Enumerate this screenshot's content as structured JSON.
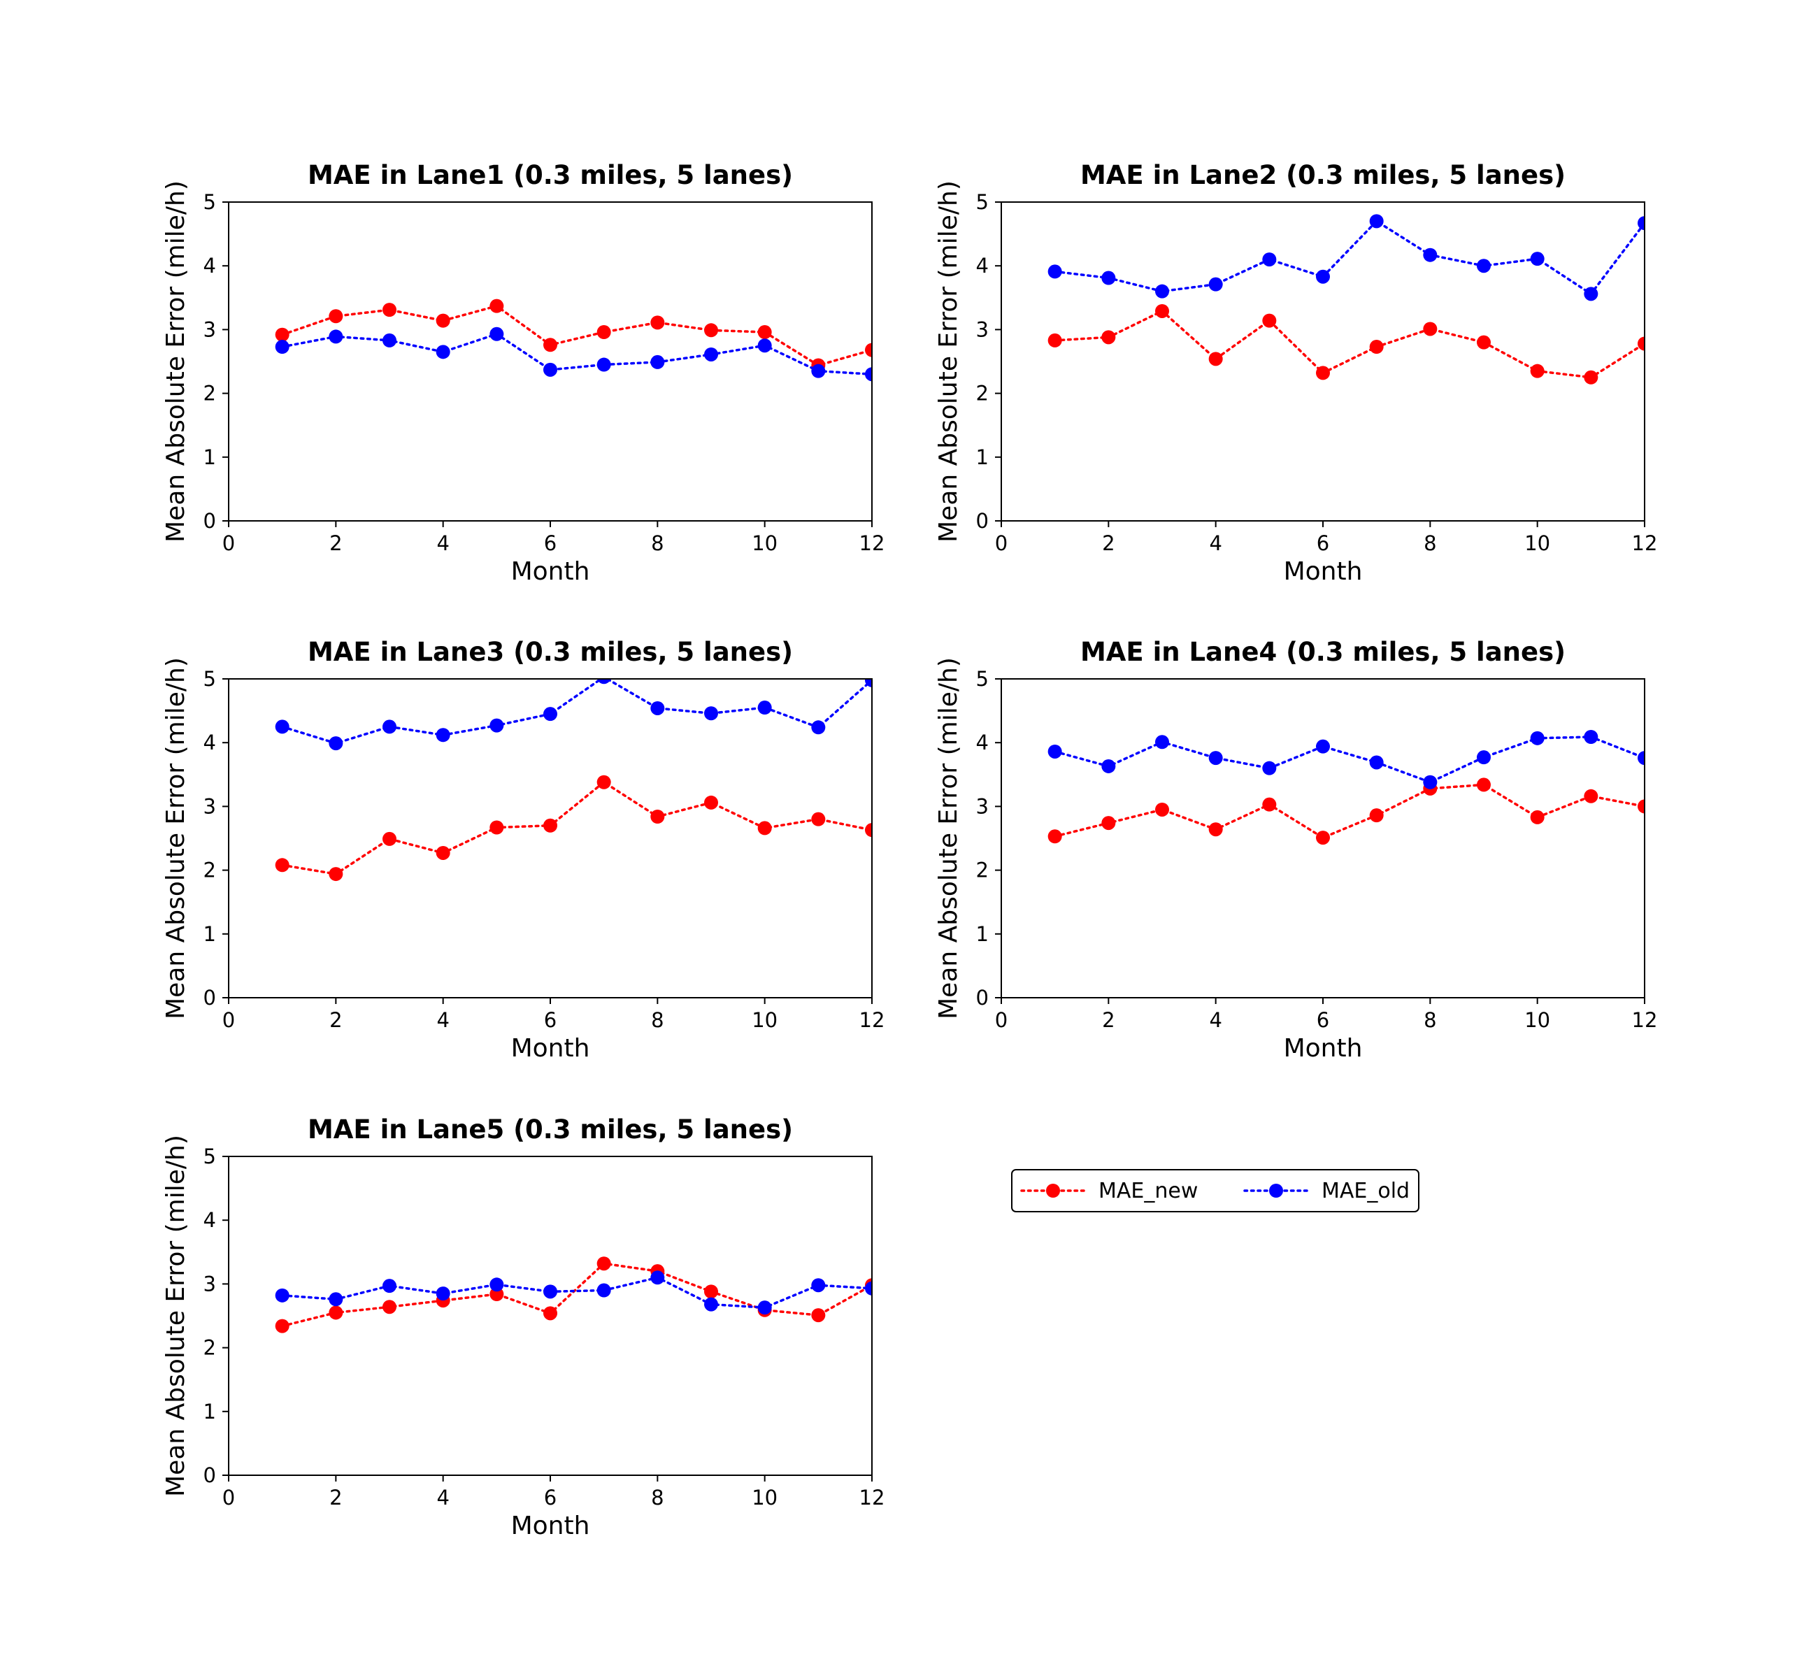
{
  "chart_data": [
    {
      "type": "line",
      "title": "MAE in Lane1 (0.3 miles, 5 lanes)",
      "xlabel": "Month",
      "ylabel": "Mean Absolute Error (mile/h)",
      "xlim": [
        0,
        12
      ],
      "ylim": [
        0,
        5
      ],
      "xticks": [
        "0",
        "2",
        "4",
        "6",
        "8",
        "10",
        "12"
      ],
      "yticks": [
        "0",
        "1",
        "2",
        "3",
        "4",
        "5"
      ],
      "x": [
        1,
        2,
        3,
        4,
        5,
        6,
        7,
        8,
        9,
        10,
        11,
        12
      ],
      "series": [
        {
          "name": "MAE_new",
          "color": "#ff0000",
          "values": [
            2.92,
            3.21,
            3.31,
            3.14,
            3.37,
            2.76,
            2.96,
            3.11,
            2.99,
            2.96,
            2.44,
            2.68
          ]
        },
        {
          "name": "MAE_old",
          "color": "#0000ff",
          "values": [
            2.73,
            2.89,
            2.83,
            2.65,
            2.93,
            2.37,
            2.45,
            2.49,
            2.61,
            2.75,
            2.35,
            2.3
          ]
        }
      ]
    },
    {
      "type": "line",
      "title": "MAE in Lane2 (0.3 miles, 5 lanes)",
      "xlabel": "Month",
      "ylabel": "Mean Absolute Error (mile/h)",
      "xlim": [
        0,
        12
      ],
      "ylim": [
        0,
        5
      ],
      "xticks": [
        "0",
        "2",
        "4",
        "6",
        "8",
        "10",
        "12"
      ],
      "yticks": [
        "0",
        "1",
        "2",
        "3",
        "4",
        "5"
      ],
      "x": [
        1,
        2,
        3,
        4,
        5,
        6,
        7,
        8,
        9,
        10,
        11,
        12
      ],
      "series": [
        {
          "name": "MAE_new",
          "color": "#ff0000",
          "values": [
            2.83,
            2.88,
            3.29,
            2.54,
            3.14,
            2.32,
            2.73,
            3.01,
            2.8,
            2.35,
            2.25,
            2.78
          ]
        },
        {
          "name": "MAE_old",
          "color": "#0000ff",
          "values": [
            3.91,
            3.81,
            3.6,
            3.71,
            4.1,
            3.83,
            4.7,
            4.17,
            4.0,
            4.11,
            3.56,
            4.67
          ]
        }
      ]
    },
    {
      "type": "line",
      "title": "MAE in Lane3 (0.3 miles, 5 lanes)",
      "xlabel": "Month",
      "ylabel": "Mean Absolute Error (mile/h)",
      "xlim": [
        0,
        12
      ],
      "ylim": [
        0,
        5
      ],
      "xticks": [
        "0",
        "2",
        "4",
        "6",
        "8",
        "10",
        "12"
      ],
      "yticks": [
        "0",
        "1",
        "2",
        "3",
        "4",
        "5"
      ],
      "x": [
        1,
        2,
        3,
        4,
        5,
        6,
        7,
        8,
        9,
        10,
        11,
        12
      ],
      "series": [
        {
          "name": "MAE_new",
          "color": "#ff0000",
          "values": [
            2.08,
            1.94,
            2.49,
            2.27,
            2.67,
            2.7,
            3.38,
            2.84,
            3.06,
            2.66,
            2.8,
            2.63
          ]
        },
        {
          "name": "MAE_old",
          "color": "#0000ff",
          "values": [
            4.25,
            3.99,
            4.25,
            4.12,
            4.27,
            4.45,
            5.03,
            4.54,
            4.46,
            4.55,
            4.24,
            4.98
          ]
        }
      ]
    },
    {
      "type": "line",
      "title": "MAE in Lane4 (0.3 miles, 5 lanes)",
      "xlabel": "Month",
      "ylabel": "Mean Absolute Error (mile/h)",
      "xlim": [
        0,
        12
      ],
      "ylim": [
        0,
        5
      ],
      "xticks": [
        "0",
        "2",
        "4",
        "6",
        "8",
        "10",
        "12"
      ],
      "yticks": [
        "0",
        "1",
        "2",
        "3",
        "4",
        "5"
      ],
      "x": [
        1,
        2,
        3,
        4,
        5,
        6,
        7,
        8,
        9,
        10,
        11,
        12
      ],
      "series": [
        {
          "name": "MAE_new",
          "color": "#ff0000",
          "values": [
            2.53,
            2.74,
            2.95,
            2.64,
            3.03,
            2.51,
            2.86,
            3.28,
            3.34,
            2.83,
            3.16,
            3.0
          ]
        },
        {
          "name": "MAE_old",
          "color": "#0000ff",
          "values": [
            3.86,
            3.63,
            4.01,
            3.76,
            3.6,
            3.94,
            3.69,
            3.38,
            3.77,
            4.07,
            4.09,
            3.76
          ]
        }
      ]
    },
    {
      "type": "line",
      "title": "MAE in Lane5 (0.3 miles, 5 lanes)",
      "xlabel": "Month",
      "ylabel": "Mean Absolute Error (mile/h)",
      "xlim": [
        0,
        12
      ],
      "ylim": [
        0,
        5
      ],
      "xticks": [
        "0",
        "2",
        "4",
        "6",
        "8",
        "10",
        "12"
      ],
      "yticks": [
        "0",
        "1",
        "2",
        "3",
        "4",
        "5"
      ],
      "x": [
        1,
        2,
        3,
        4,
        5,
        6,
        7,
        8,
        9,
        10,
        11,
        12
      ],
      "series": [
        {
          "name": "MAE_new",
          "color": "#ff0000",
          "values": [
            2.34,
            2.55,
            2.64,
            2.74,
            2.84,
            2.54,
            3.32,
            3.2,
            2.88,
            2.59,
            2.51,
            2.98
          ]
        },
        {
          "name": "MAE_old",
          "color": "#0000ff",
          "values": [
            2.82,
            2.76,
            2.97,
            2.85,
            2.99,
            2.88,
            2.9,
            3.1,
            2.68,
            2.63,
            2.98,
            2.93
          ]
        }
      ]
    }
  ],
  "legend": {
    "placement": "right of Lane5 panel",
    "entries": [
      {
        "label": "MAE_new",
        "color": "#ff0000"
      },
      {
        "label": "MAE_old",
        "color": "#0000ff"
      }
    ]
  }
}
